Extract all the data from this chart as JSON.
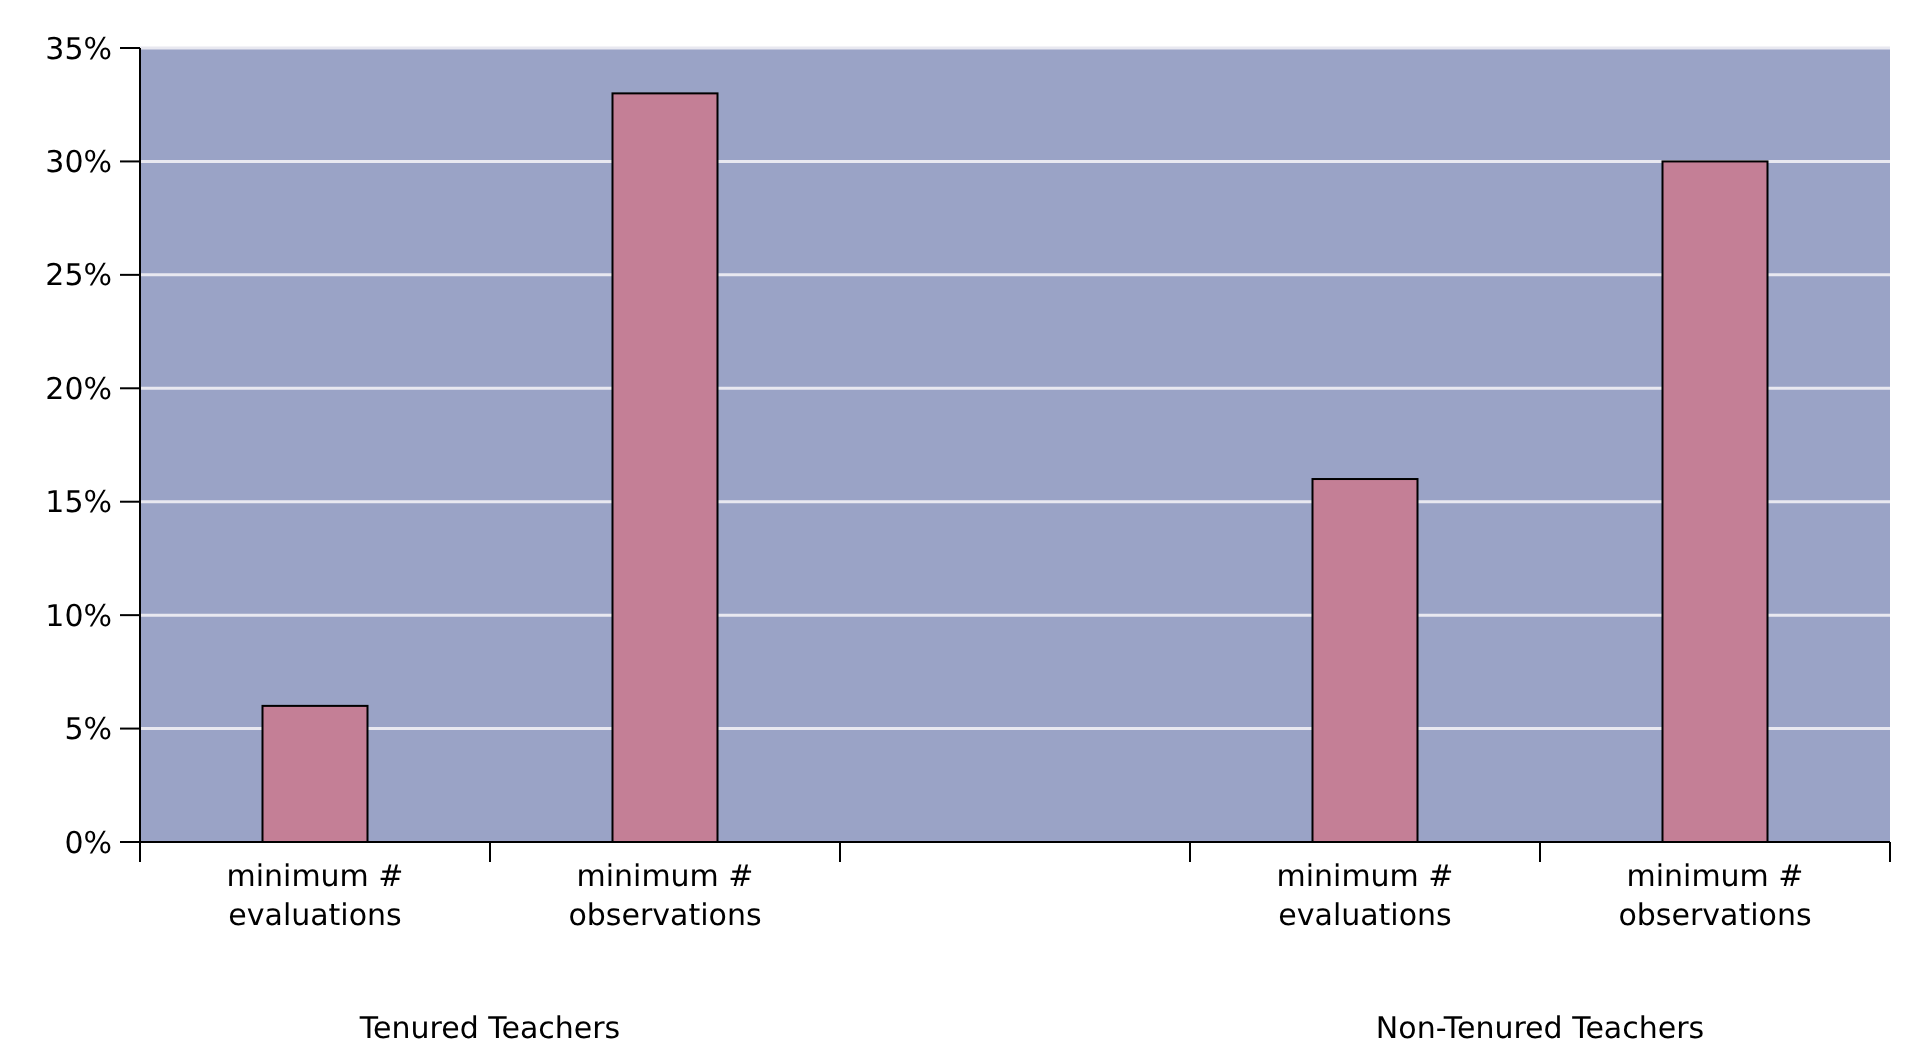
{
  "chart_data": {
    "type": "bar",
    "categories": [
      "minimum # evaluations",
      "minimum # observations",
      null,
      "minimum # evaluations",
      "minimum # observations"
    ],
    "values": [
      6,
      33,
      null,
      16,
      30
    ],
    "color": "#c47f96",
    "ylim": [
      0,
      35
    ],
    "yticks": [
      {
        "value": 0,
        "label": "0%"
      },
      {
        "value": 5,
        "label": "5%"
      },
      {
        "value": 10,
        "label": "10%"
      },
      {
        "value": 15,
        "label": "15%"
      },
      {
        "value": 20,
        "label": "20%"
      },
      {
        "value": 25,
        "label": "25%"
      },
      {
        "value": 30,
        "label": "30%"
      },
      {
        "value": 35,
        "label": "35%"
      }
    ],
    "grid": "y",
    "annotations": [
      "Tenured Teachers",
      "Non-Tenured Teachers"
    ]
  }
}
